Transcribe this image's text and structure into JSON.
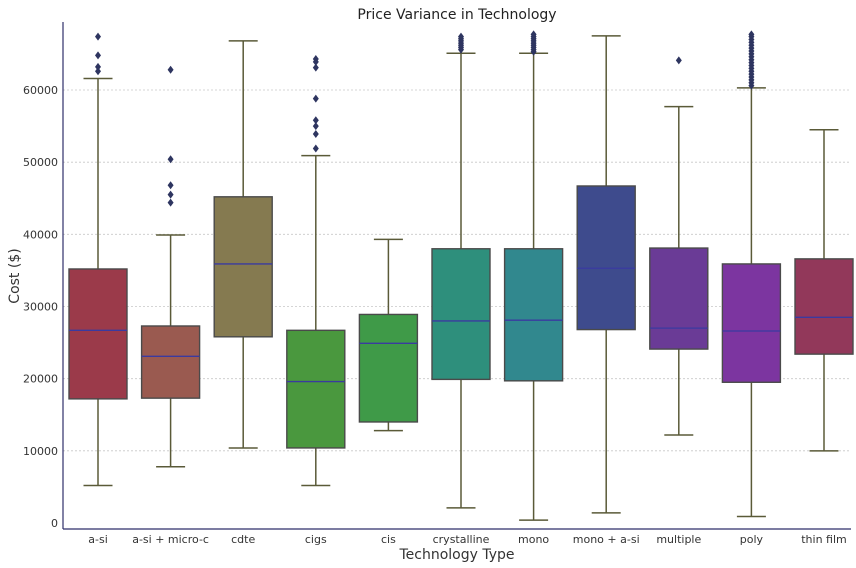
{
  "chart_data": {
    "type": "box",
    "title": "Price Variance in Technology",
    "xlabel": "Technology Type",
    "ylabel": "Cost ($)",
    "ylim": [
      0,
      68000
    ],
    "yticks": [
      0,
      10000,
      20000,
      30000,
      40000,
      50000,
      60000
    ],
    "grid": "horizontal dotted",
    "median_color": "#3a3aa0",
    "whisker_color": "#5a5a38",
    "categories": [
      "a-si",
      "a-si + micro-c",
      "cdte",
      "cigs",
      "cis",
      "crystalline",
      "mono",
      "mono + a-si",
      "multiple",
      "poly",
      "thin film"
    ],
    "series": [
      {
        "category": "a-si",
        "color": "#9b3a4a",
        "whisker_low": 5200,
        "q1": 17200,
        "median": 26700,
        "q3": 35200,
        "whisker_high": 61600,
        "outliers": [
          62600,
          63200,
          64800,
          67400
        ]
      },
      {
        "category": "a-si + micro-c",
        "color": "#9a5a50",
        "whisker_low": 7800,
        "q1": 17300,
        "median": 23100,
        "q3": 27300,
        "whisker_high": 39900,
        "outliers": [
          44400,
          45500,
          46800,
          50400,
          62800
        ]
      },
      {
        "category": "cdte",
        "color": "#857a50",
        "whisker_low": 10400,
        "q1": 25800,
        "median": 35900,
        "q3": 45200,
        "whisker_high": 66800,
        "outliers": []
      },
      {
        "category": "cigs",
        "color": "#4a983e",
        "whisker_low": 5200,
        "q1": 10400,
        "median": 19600,
        "q3": 26700,
        "whisker_high": 50900,
        "outliers": [
          51900,
          53900,
          55000,
          55800,
          58800,
          63100,
          63900,
          64300
        ]
      },
      {
        "category": "cis",
        "color": "#3f9a48",
        "whisker_low": 12800,
        "q1": 14000,
        "median": 24900,
        "q3": 28900,
        "whisker_high": 39300,
        "outliers": []
      },
      {
        "category": "crystalline",
        "color": "#2e8f7c",
        "whisker_low": 2100,
        "q1": 19900,
        "median": 28000,
        "q3": 38000,
        "whisker_high": 65100,
        "outliers": [
          65600,
          65900,
          66200,
          66500,
          66800,
          67100,
          67400
        ]
      },
      {
        "category": "mono",
        "color": "#31888e",
        "whisker_low": 400,
        "q1": 19700,
        "median": 28100,
        "q3": 38000,
        "whisker_high": 65100,
        "outliers": [
          65300,
          65600,
          65900,
          66200,
          66500,
          66800,
          67100,
          67400,
          67700
        ]
      },
      {
        "category": "mono + a-si",
        "color": "#3e4b8d",
        "whisker_low": 1400,
        "q1": 26800,
        "median": 35300,
        "q3": 46700,
        "whisker_high": 67500,
        "outliers": []
      },
      {
        "category": "multiple",
        "color": "#6a3b96",
        "whisker_low": 12200,
        "q1": 24100,
        "median": 27000,
        "q3": 38100,
        "whisker_high": 57700,
        "outliers": [
          64100
        ]
      },
      {
        "category": "poly",
        "color": "#7c35a0",
        "whisker_low": 900,
        "q1": 19500,
        "median": 26600,
        "q3": 35900,
        "whisker_high": 60300,
        "outliers": [
          60600,
          61000,
          61400,
          61800,
          62200,
          62600,
          63000,
          63400,
          63800,
          64200,
          64600,
          65000,
          65400,
          65800,
          66200,
          66600,
          67000,
          67400,
          67700
        ]
      },
      {
        "category": "thin film",
        "color": "#92385a",
        "whisker_low": 10000,
        "q1": 23400,
        "median": 28500,
        "q3": 36600,
        "whisker_high": 54500,
        "outliers": []
      }
    ]
  }
}
